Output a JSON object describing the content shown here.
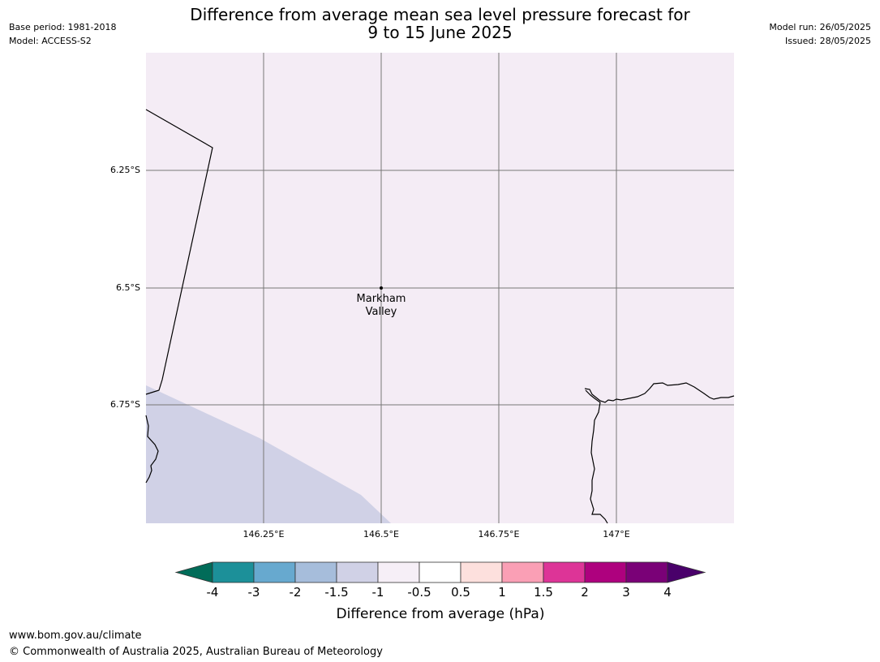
{
  "header": {
    "title_line1": "Difference from average mean sea level pressure forecast for",
    "title_line2": "9 to 15 June 2025",
    "base_period": "Base period: 1981-2018",
    "model": "Model: ACCESS-S2",
    "model_run": "Model run: 26/05/2025",
    "issued": "Issued: 28/05/2025"
  },
  "map": {
    "latitude_labels": [
      "6.25°S",
      "6.5°S",
      "6.75°S"
    ],
    "longitude_labels": [
      "146.25°E",
      "146.5°E",
      "146.75°E",
      "147°E"
    ],
    "place": {
      "line1": "Markham",
      "line2": "Valley"
    },
    "field_colors": {
      "background_class": "#f4ecf5",
      "lower_left_class": "#d0d1e6"
    }
  },
  "colorbar": {
    "title": "Difference from average (hPa)",
    "tick_labels": [
      "-4",
      "-3",
      "-2",
      "-1.5",
      "-1",
      "-0.5",
      "0.5",
      "1",
      "1.5",
      "2",
      "3",
      "4"
    ],
    "colors": [
      "#016c59",
      "#1c9099",
      "#67a9cf",
      "#a6bddb",
      "#d0d1e6",
      "#f6eff7",
      "#ffffff",
      "#fde0dd",
      "#fa9fb5",
      "#dd3497",
      "#ae017e",
      "#7a0177",
      "#49006a"
    ]
  },
  "footer": {
    "url": "www.bom.gov.au/climate",
    "copyright": "© Commonwealth of Australia 2025, Australian Bureau of Meteorology"
  }
}
